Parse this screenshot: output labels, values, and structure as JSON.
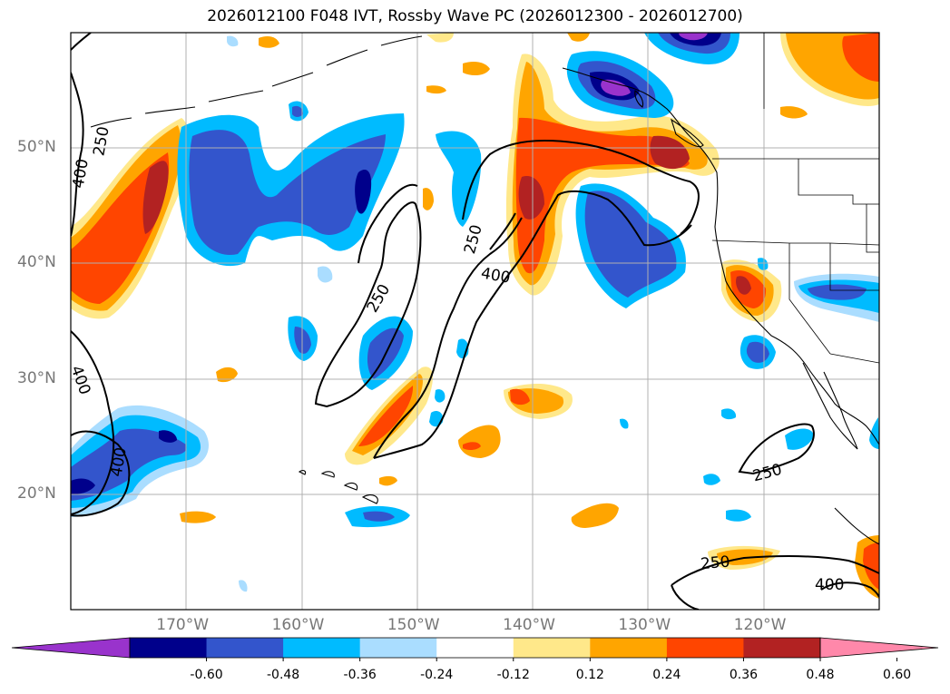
{
  "title": "2026012100 F048 IVT, Rossby Wave PC (2026012300 - 2026012700)",
  "map": {
    "lon_range": [
      -180,
      -110
    ],
    "lat_range": [
      10,
      60
    ],
    "lat_labels": [
      {
        "lat": 50,
        "text": "50°N"
      },
      {
        "lat": 40,
        "text": "40°N"
      },
      {
        "lat": 30,
        "text": "30°N"
      },
      {
        "lat": 20,
        "text": "20°N"
      }
    ],
    "lon_labels": [
      {
        "lon": -170,
        "text": "170°W"
      },
      {
        "lon": -160,
        "text": "160°W"
      },
      {
        "lon": -150,
        "text": "150°W"
      },
      {
        "lon": -140,
        "text": "140°W"
      },
      {
        "lon": -130,
        "text": "130°W"
      },
      {
        "lon": -120,
        "text": "120°W"
      }
    ],
    "contour_labels": [
      {
        "text": "250",
        "lon": -177.4,
        "lat": 50.6,
        "rot": -80
      },
      {
        "text": "400",
        "lon": -179.2,
        "lat": 47.8,
        "rot": -80
      },
      {
        "text": "400",
        "lon": -179.1,
        "lat": 29.9,
        "rot": 70
      },
      {
        "text": "400",
        "lon": -175.9,
        "lat": 22.8,
        "rot": -80
      },
      {
        "text": "250",
        "lon": -153.4,
        "lat": 37.0,
        "rot": -60
      },
      {
        "text": "250",
        "lon": -145.2,
        "lat": 42.1,
        "rot": -75
      },
      {
        "text": "400",
        "lon": -143.2,
        "lat": 39.0,
        "rot": 10
      },
      {
        "text": "250",
        "lon": -119.7,
        "lat": 21.9,
        "rot": -15
      },
      {
        "text": "250",
        "lon": -124.2,
        "lat": 14.1,
        "rot": -5
      },
      {
        "text": "400",
        "lon": -114.3,
        "lat": 12.2,
        "rot": 0
      }
    ]
  },
  "colorbar": {
    "ticks": [
      "-0.60",
      "-0.48",
      "-0.36",
      "-0.24",
      "-0.12",
      "0.12",
      "0.24",
      "0.36",
      "0.48",
      "0.60"
    ],
    "colors": [
      "#9933cc",
      "#00008b",
      "#3355cc",
      "#00bbff",
      "#aaddff",
      "#ffffff",
      "#ffe88a",
      "#ffa500",
      "#ff4500",
      "#b22222",
      "#ff88aa"
    ]
  }
}
